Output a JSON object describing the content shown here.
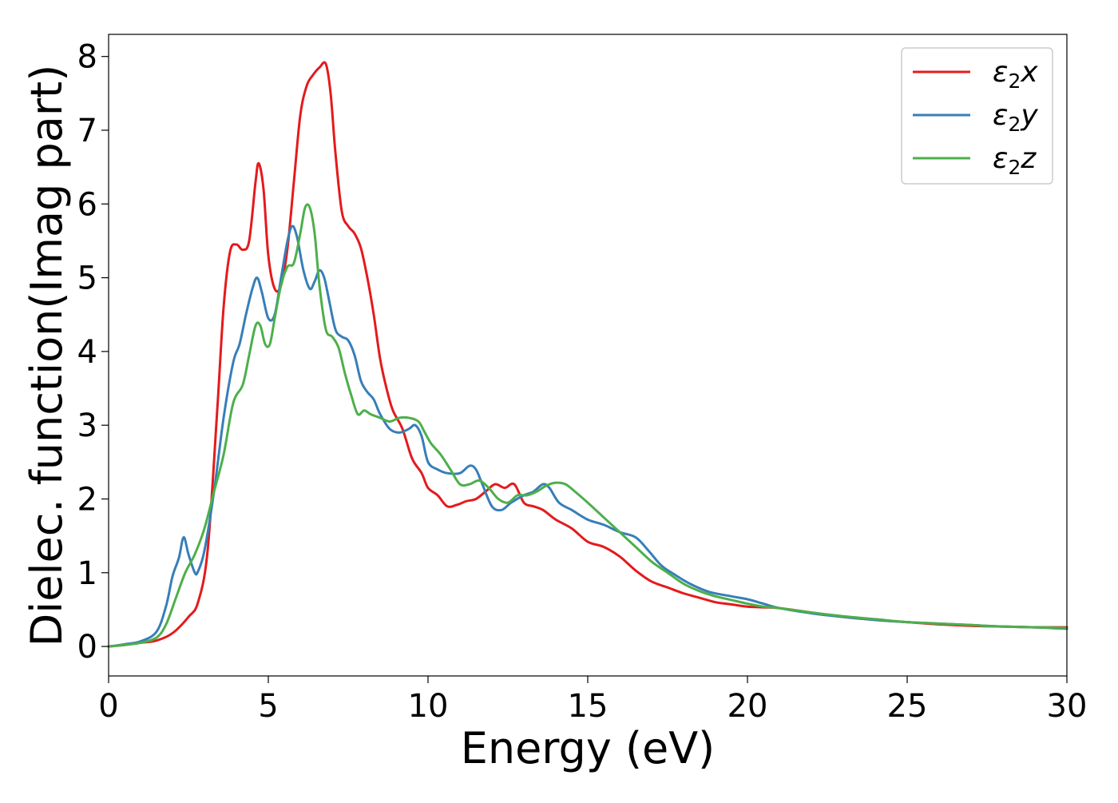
{
  "chart_data": {
    "type": "line",
    "xlabel": "Energy (eV)",
    "ylabel": "Dielec. function(Imag part)",
    "xlim": [
      0,
      30
    ],
    "ylim": [
      -0.4,
      8.3
    ],
    "x_ticks": [
      0,
      5,
      10,
      15,
      20,
      25,
      30
    ],
    "y_ticks": [
      0,
      1,
      2,
      3,
      4,
      5,
      6,
      7,
      8
    ],
    "grid": false,
    "legend_position": "top-right",
    "series": [
      {
        "name": "ε₂x",
        "legend_base": "ε",
        "legend_sub": "2",
        "legend_var": "x",
        "color": "#e41a1c",
        "x": [
          0,
          0.5,
          1,
          1.5,
          2,
          2.5,
          2.8,
          3.1,
          3.4,
          3.6,
          3.8,
          4,
          4.2,
          4.4,
          4.6,
          4.7,
          4.85,
          5,
          5.2,
          5.4,
          5.6,
          5.8,
          6,
          6.2,
          6.4,
          6.6,
          6.8,
          6.95,
          7.1,
          7.3,
          7.5,
          7.7,
          7.9,
          8.1,
          8.3,
          8.5,
          8.7,
          8.9,
          9.2,
          9.5,
          9.8,
          10,
          10.3,
          10.6,
          10.9,
          11.2,
          11.5,
          11.8,
          12.1,
          12.4,
          12.7,
          13,
          13.3,
          13.6,
          14,
          14.5,
          15,
          15.5,
          16,
          16.5,
          17,
          17.5,
          18,
          18.5,
          19,
          19.5,
          20,
          20.5,
          21,
          22,
          23,
          24,
          25,
          26,
          27,
          28,
          29,
          30
        ],
        "y": [
          0,
          0.02,
          0.05,
          0.08,
          0.18,
          0.4,
          0.6,
          1.3,
          3.2,
          4.6,
          5.35,
          5.45,
          5.38,
          5.5,
          6.3,
          6.55,
          6.2,
          5.3,
          4.85,
          4.9,
          5.4,
          6.3,
          7.2,
          7.6,
          7.75,
          7.85,
          7.9,
          7.5,
          6.7,
          5.9,
          5.7,
          5.6,
          5.4,
          5.0,
          4.5,
          3.9,
          3.5,
          3.2,
          2.95,
          2.55,
          2.35,
          2.15,
          2.05,
          1.9,
          1.92,
          1.97,
          2.0,
          2.1,
          2.2,
          2.15,
          2.2,
          1.95,
          1.9,
          1.85,
          1.72,
          1.6,
          1.42,
          1.35,
          1.22,
          1.03,
          0.88,
          0.8,
          0.72,
          0.66,
          0.6,
          0.57,
          0.54,
          0.53,
          0.52,
          0.46,
          0.4,
          0.36,
          0.33,
          0.3,
          0.28,
          0.27,
          0.26,
          0.26
        ]
      },
      {
        "name": "ε₂y",
        "legend_base": "ε",
        "legend_sub": "2",
        "legend_var": "y",
        "color": "#377eb8",
        "x": [
          0,
          0.5,
          1,
          1.5,
          1.8,
          2,
          2.2,
          2.35,
          2.5,
          2.7,
          2.8,
          3,
          3.3,
          3.6,
          3.9,
          4.1,
          4.3,
          4.5,
          4.65,
          4.8,
          5,
          5.2,
          5.4,
          5.6,
          5.75,
          5.9,
          6.1,
          6.3,
          6.45,
          6.6,
          6.75,
          6.9,
          7.1,
          7.3,
          7.5,
          7.7,
          7.9,
          8.1,
          8.3,
          8.5,
          8.8,
          9.1,
          9.4,
          9.6,
          9.8,
          10,
          10.3,
          10.6,
          11,
          11.3,
          11.5,
          11.7,
          12,
          12.3,
          12.6,
          13,
          13.3,
          13.6,
          13.8,
          14.1,
          14.5,
          15,
          15.5,
          16,
          16.5,
          16.9,
          17.3,
          17.7,
          18.2,
          18.8,
          19.5,
          20,
          20.5,
          21,
          22,
          23,
          24,
          25,
          26,
          27,
          28,
          29,
          30
        ],
        "y": [
          0,
          0.03,
          0.07,
          0.2,
          0.55,
          0.95,
          1.2,
          1.48,
          1.25,
          1.0,
          1.02,
          1.3,
          2.1,
          3.1,
          3.85,
          4.1,
          4.5,
          4.85,
          5.0,
          4.8,
          4.45,
          4.5,
          5.0,
          5.5,
          5.7,
          5.55,
          5.1,
          4.85,
          4.95,
          5.1,
          5.0,
          4.7,
          4.3,
          4.2,
          4.15,
          3.95,
          3.6,
          3.45,
          3.35,
          3.15,
          2.95,
          2.9,
          2.95,
          3.0,
          2.85,
          2.5,
          2.4,
          2.35,
          2.35,
          2.45,
          2.4,
          2.2,
          1.9,
          1.85,
          1.95,
          2.05,
          2.1,
          2.2,
          2.15,
          1.95,
          1.85,
          1.72,
          1.65,
          1.55,
          1.48,
          1.3,
          1.1,
          0.98,
          0.85,
          0.74,
          0.68,
          0.64,
          0.58,
          0.52,
          0.45,
          0.4,
          0.36,
          0.33,
          0.31,
          0.29,
          0.27,
          0.26,
          0.24
        ]
      },
      {
        "name": "ε₂z",
        "legend_base": "ε",
        "legend_sub": "2",
        "legend_var": "z",
        "color": "#4daf4a",
        "x": [
          0,
          0.5,
          1,
          1.5,
          1.8,
          2.1,
          2.4,
          2.7,
          3,
          3.3,
          3.6,
          3.9,
          4.2,
          4.4,
          4.6,
          4.75,
          4.9,
          5.05,
          5.2,
          5.4,
          5.6,
          5.8,
          6,
          6.15,
          6.3,
          6.45,
          6.6,
          6.8,
          7,
          7.2,
          7.4,
          7.6,
          7.8,
          8,
          8.2,
          8.5,
          8.8,
          9.1,
          9.4,
          9.7,
          9.9,
          10.1,
          10.4,
          10.7,
          11,
          11.3,
          11.6,
          11.9,
          12.2,
          12.5,
          12.8,
          13.1,
          13.4,
          13.7,
          14,
          14.3,
          14.6,
          15,
          15.5,
          16,
          16.5,
          17,
          17.5,
          18,
          18.5,
          19,
          19.5,
          20,
          20.5,
          21,
          22,
          23,
          24,
          25,
          26,
          27,
          28,
          29,
          30
        ],
        "y": [
          0,
          0.02,
          0.05,
          0.12,
          0.3,
          0.65,
          1.0,
          1.25,
          1.6,
          2.1,
          2.6,
          3.3,
          3.55,
          3.95,
          4.35,
          4.35,
          4.1,
          4.1,
          4.45,
          4.9,
          5.15,
          5.2,
          5.6,
          5.95,
          5.95,
          5.6,
          4.9,
          4.3,
          4.2,
          4.05,
          3.7,
          3.4,
          3.15,
          3.2,
          3.15,
          3.1,
          3.05,
          3.1,
          3.1,
          3.05,
          2.9,
          2.75,
          2.6,
          2.4,
          2.2,
          2.2,
          2.25,
          2.15,
          2.0,
          1.95,
          2.05,
          2.05,
          2.1,
          2.18,
          2.22,
          2.2,
          2.1,
          1.95,
          1.75,
          1.55,
          1.35,
          1.15,
          1.0,
          0.85,
          0.75,
          0.68,
          0.63,
          0.58,
          0.54,
          0.52,
          0.46,
          0.41,
          0.37,
          0.33,
          0.31,
          0.29,
          0.27,
          0.26,
          0.25
        ]
      }
    ]
  }
}
